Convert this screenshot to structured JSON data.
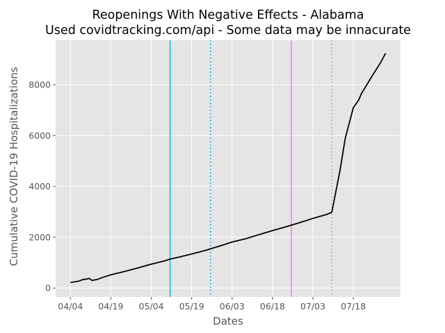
{
  "chart_data": {
    "type": "line",
    "title": "Reopenings With Negative Effects - Alabama",
    "subtitle": "Used covidtracking.com/api - Some data may be innacurate",
    "xlabel": "Dates",
    "ylabel": "Cumulative COVID-19 Hospitalizations",
    "x_ticks": [
      "04/04",
      "04/19",
      "05/04",
      "05/19",
      "06/03",
      "06/18",
      "07/03",
      "07/18"
    ],
    "y_ticks": [
      0,
      2000,
      4000,
      6000,
      8000
    ],
    "ylim": [
      -350,
      9750
    ],
    "xlim_days": [
      -5.5,
      122.5
    ],
    "grid": true,
    "background": "#e5e5e5",
    "line_color": "#000000",
    "series": [
      {
        "x_days": [
          0,
          2,
          3,
          4,
          5,
          6,
          7,
          8,
          10,
          12,
          15,
          20,
          25,
          30,
          35,
          37,
          40,
          45,
          50,
          55,
          60,
          65,
          70,
          75,
          80,
          85,
          90,
          95,
          97,
          100,
          102,
          105,
          107,
          108,
          110,
          112,
          115,
          117
        ],
        "values": [
          220,
          250,
          270,
          310,
          340,
          355,
          380,
          300,
          340,
          420,
          520,
          650,
          790,
          940,
          1070,
          1140,
          1210,
          1340,
          1480,
          1640,
          1810,
          1940,
          2100,
          2260,
          2410,
          2570,
          2740,
          2890,
          2980,
          4600,
          5900,
          7100,
          7400,
          7650,
          8000,
          8350,
          8850,
          9240
        ]
      }
    ],
    "vertical_lines": [
      {
        "x_day": 37,
        "color": "#17becf",
        "style": "solid"
      },
      {
        "x_day": 52,
        "color": "#17becf",
        "style": "dotted"
      },
      {
        "x_day": 82,
        "color": "#ee82ee",
        "style": "solid"
      },
      {
        "x_day": 97,
        "color": "#ee82ee",
        "style": "dotted"
      }
    ]
  }
}
